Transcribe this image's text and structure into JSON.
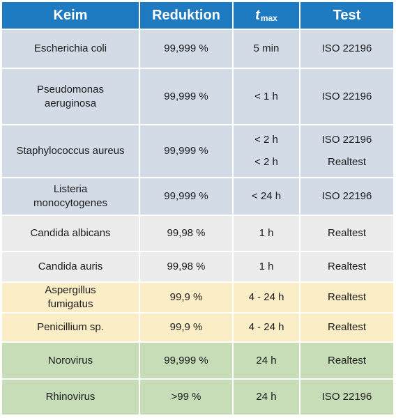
{
  "colors": {
    "header": "#1f7bc1",
    "bacteria": "#d3dbe7",
    "fungi_candida": "#ececec",
    "fungi_mold": "#fbedc5",
    "virus": "#c7ddb8"
  },
  "header": {
    "keim": "Keim",
    "reduktion": "Reduktion",
    "tmax_t": "t",
    "tmax_sub": "max",
    "test": "Test"
  },
  "rows": [
    {
      "keim": "Escherichia coli",
      "reduktion": "99,999 %",
      "tmax": [
        "5 min"
      ],
      "test": [
        "ISO 22196"
      ],
      "group": "bacteria"
    },
    {
      "keim": "Pseudomonas aeruginosa",
      "keim_lines": [
        "Pseudomonas",
        "aeruginosa"
      ],
      "reduktion": "99,999 %",
      "tmax": [
        "< 1 h"
      ],
      "test": [
        "ISO 22196"
      ],
      "group": "bacteria"
    },
    {
      "keim": "Staphylococcus aureus",
      "reduktion": "99,999 %",
      "tmax": [
        "< 2 h",
        "< 2 h"
      ],
      "test": [
        "ISO 22196",
        "Realtest"
      ],
      "group": "bacteria"
    },
    {
      "keim": "Listeria monocytogenes",
      "keim_lines": [
        "Listeria",
        "monocytogenes"
      ],
      "reduktion": "99,999 %",
      "tmax": [
        "< 24 h"
      ],
      "test": [
        "ISO 22196"
      ],
      "group": "bacteria"
    },
    {
      "keim": "Candida albicans",
      "reduktion": "99,98 %",
      "tmax": [
        "1 h"
      ],
      "test": [
        "Realtest"
      ],
      "group": "fungi_candida"
    },
    {
      "keim": "Candida auris",
      "reduktion": "99,98 %",
      "tmax": [
        "1 h"
      ],
      "test": [
        "Realtest"
      ],
      "group": "fungi_candida"
    },
    {
      "keim": "Aspergillus fumigatus",
      "keim_lines": [
        "Aspergillus",
        "fumigatus"
      ],
      "reduktion": "99,9 %",
      "tmax": [
        "4 - 24 h"
      ],
      "test": [
        "Realtest"
      ],
      "group": "fungi_mold"
    },
    {
      "keim": "Penicillium sp.",
      "reduktion": "99,9 %",
      "tmax": [
        "4 - 24 h"
      ],
      "test": [
        "Realtest"
      ],
      "group": "fungi_mold"
    },
    {
      "keim": "Norovirus",
      "reduktion": "99,999 %",
      "tmax": [
        "24 h"
      ],
      "test": [
        "Realtest"
      ],
      "group": "virus"
    },
    {
      "keim": "Rhinovirus",
      "reduktion": ">99 %",
      "tmax": [
        "24 h"
      ],
      "test": [
        "ISO 22196"
      ],
      "group": "virus"
    }
  ]
}
